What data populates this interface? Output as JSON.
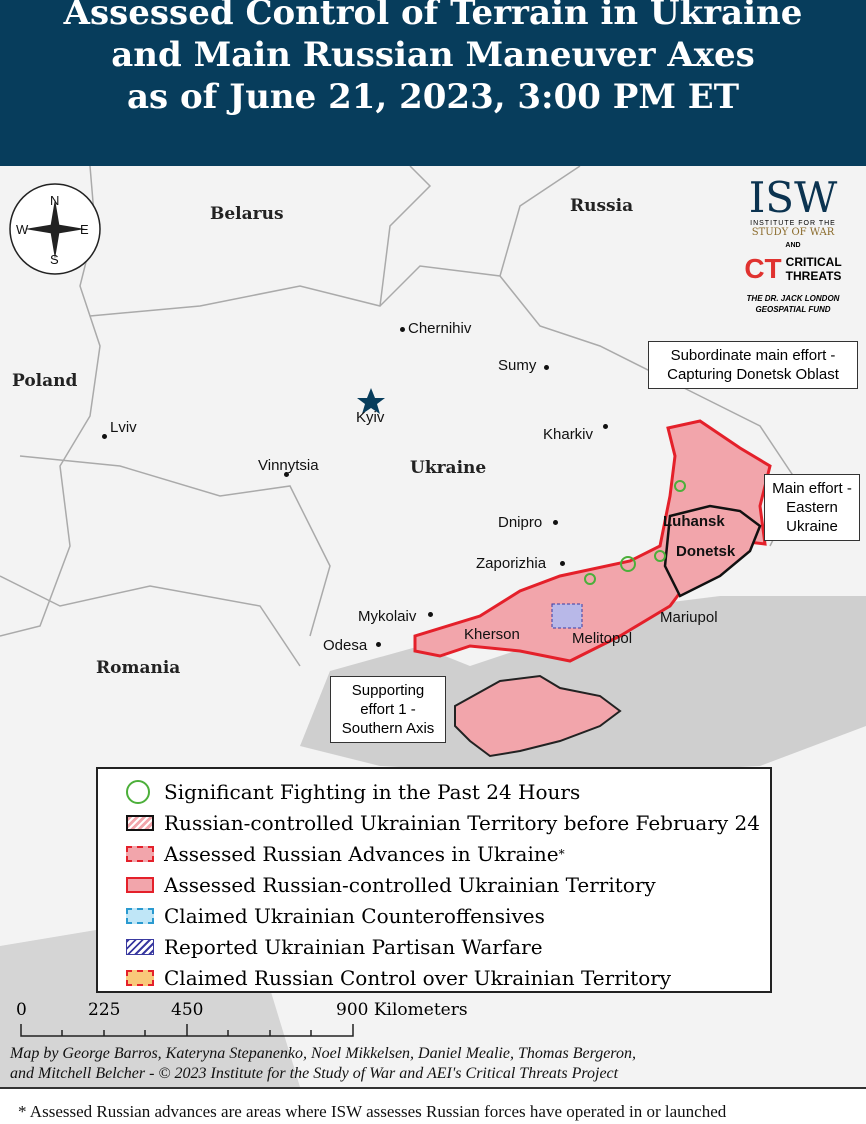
{
  "header": {
    "title_lines": [
      "Assessed Control of Terrain in Ukraine",
      "and Main Russian Maneuver Axes",
      "as of June 21, 2023, 3:00 PM ET"
    ]
  },
  "compass": {
    "n": "N",
    "s": "S",
    "e": "E",
    "w": "W"
  },
  "logo": {
    "isw": "ISW",
    "isw_sub1": "INSTITUTE FOR THE",
    "isw_sub2": "STUDY OF WAR",
    "and": "AND",
    "ct_mark": "CT",
    "ct1": "CRITICAL",
    "ct2": "THREATS",
    "fund1": "THE DR. JACK LONDON",
    "fund2": "GEOSPATIAL FUND"
  },
  "countries": {
    "belarus": "Belarus",
    "russia": "Russia",
    "poland": "Poland",
    "ukraine": "Ukraine",
    "romania": "Romania"
  },
  "cities": {
    "chernihiv": "Chernihiv",
    "sumy": "Sumy",
    "kyiv": "Kyiv",
    "lviv": "Lviv",
    "kharkiv": "Kharkiv",
    "vinnytsia": "Vinnytsia",
    "dnipro": "Dnipro",
    "luhansk": "Luhansk",
    "donetsk": "Donetsk",
    "zaporizhia": "Zaporizhia",
    "mykolaiv": "Mykolaiv",
    "kherson": "Kherson",
    "melitopol": "Melitopol",
    "mariupol": "Mariupol",
    "odesa": "Odesa"
  },
  "callouts": {
    "subordinate": "Subordinate main effort - Capturing Donetsk Oblast",
    "main": "Main effort - Eastern Ukraine",
    "supporting": "Supporting effort 1 - Southern Axis"
  },
  "legend": {
    "items": [
      {
        "label": "Significant Fighting in the Past 24 Hours"
      },
      {
        "label": "Russian-controlled Ukrainian Territory before February 24"
      },
      {
        "label": "Assessed Russian Advances in Ukraine",
        "sup": "*"
      },
      {
        "label": "Assessed Russian-controlled Ukrainian Territory"
      },
      {
        "label": "Claimed Ukrainian Counteroffensives"
      },
      {
        "label": "Reported Ukrainian Partisan Warfare"
      },
      {
        "label": "Claimed Russian Control over Ukrainian Territory"
      }
    ]
  },
  "scale": {
    "t0": "0",
    "t1": "225",
    "t2": "450",
    "t3": "900",
    "unit": "Kilometers"
  },
  "credits": {
    "line1": "Map by George Barros, Kateryna Stepanenko, Noel Mikkelsen, Daniel Mealie, Thomas Bergeron,",
    "line2": "and Mitchell Belcher - © 2023 Institute for the Study of War and AEI's Critical Threats Project"
  },
  "footnote": "* Assessed Russian advances are areas where ISW assesses Russian forces have operated in or launched",
  "colors": {
    "header": "#073d5c",
    "occupied": "#f2a5ab",
    "border_red": "#e4202a",
    "fighting": "#4caf3a",
    "sea": "#cfcfcf",
    "land": "#f3f3f3"
  }
}
